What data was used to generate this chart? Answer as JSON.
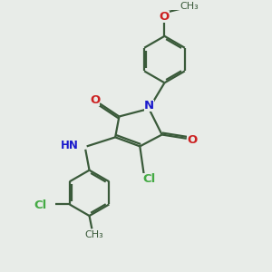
{
  "background_color": "#e8ece8",
  "bond_color": "#3a5a3a",
  "n_color": "#1a1acc",
  "o_color": "#cc2222",
  "cl_color": "#44aa44",
  "line_width": 1.6,
  "figsize": [
    3.0,
    3.0
  ],
  "dpi": 100,
  "xlim": [
    0,
    10
  ],
  "ylim": [
    0,
    10
  ]
}
